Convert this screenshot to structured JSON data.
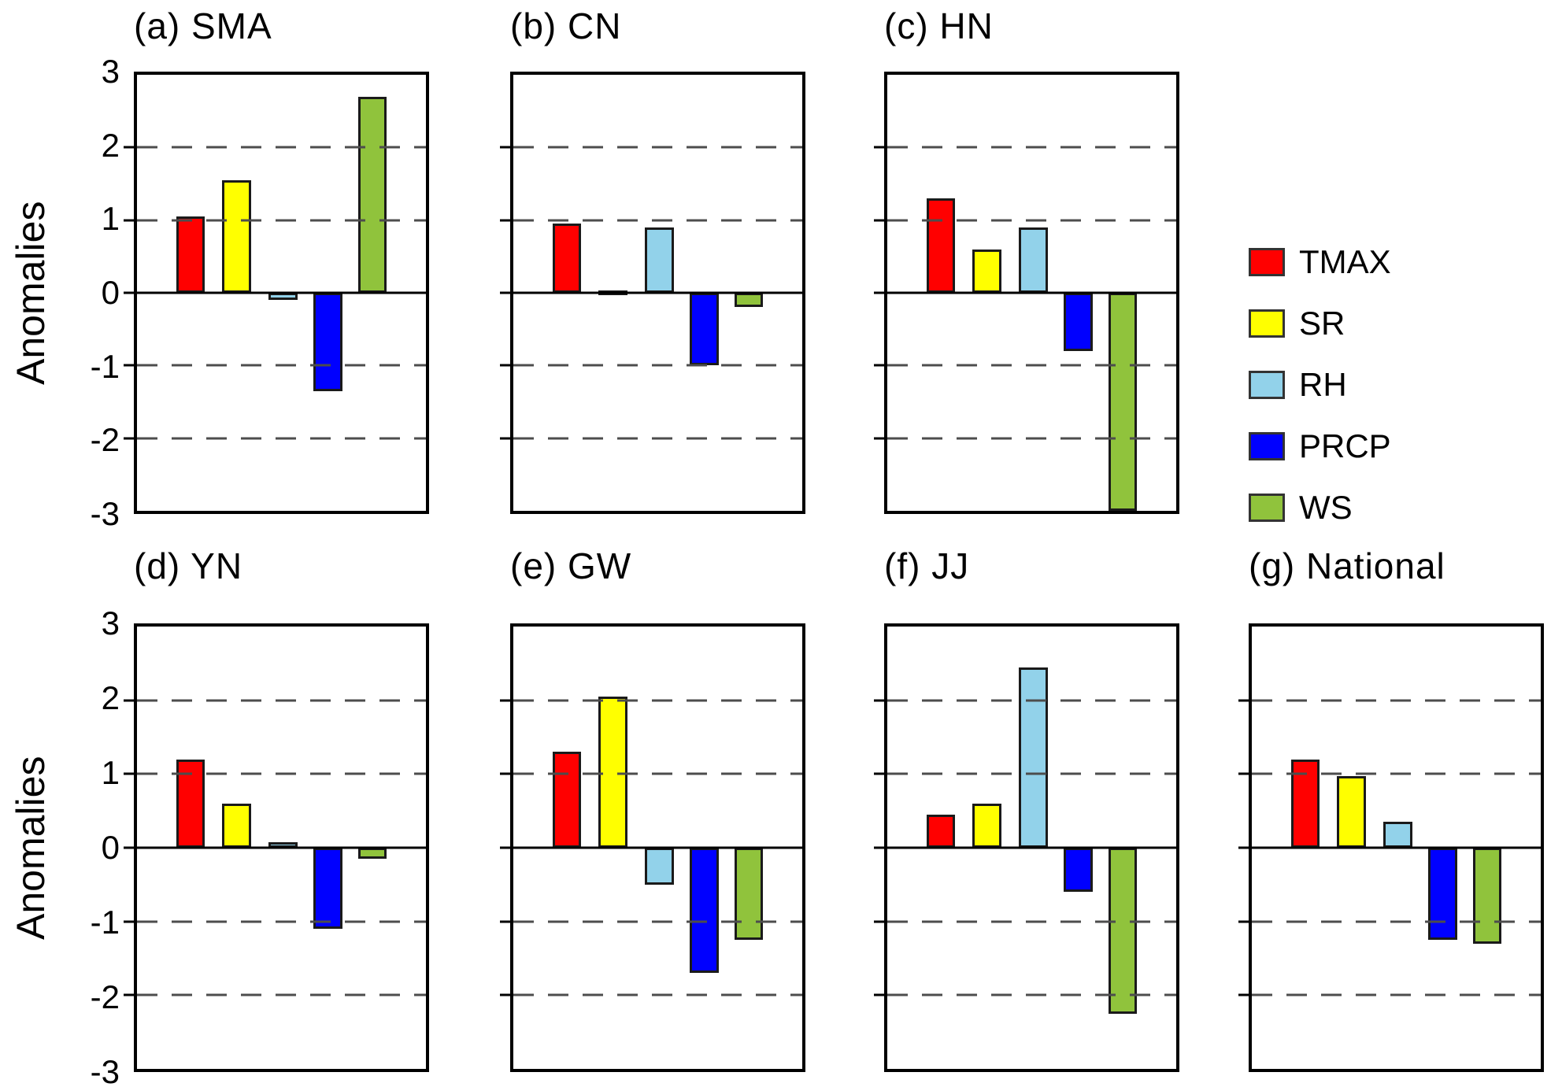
{
  "figure": {
    "ylabel": "Anomalies",
    "yticks": [
      "3",
      "2",
      "1",
      "0",
      "-1",
      "-2",
      "-3"
    ],
    "ylim": [
      -3,
      3
    ],
    "grid": "dashed horizontal lines at -2, -1, 1, 2; solid zero line"
  },
  "legend": {
    "position": "right of top row",
    "items": [
      {
        "label": "TMAX",
        "color": "#ff0000"
      },
      {
        "label": "SR",
        "color": "#ffff00"
      },
      {
        "label": "RH",
        "color": "#92d2ea"
      },
      {
        "label": "PRCP",
        "color": "#0000ff"
      },
      {
        "label": "WS",
        "color": "#90c33c"
      }
    ]
  },
  "chart_data": [
    {
      "type": "bar",
      "title": "(a) SMA",
      "region": "SMA",
      "categories": [
        "TMAX",
        "SR",
        "RH",
        "PRCP",
        "WS"
      ],
      "values": [
        1.05,
        1.55,
        -0.1,
        -1.35,
        2.7
      ],
      "ylabel": "Anomalies",
      "ylim": [
        -3,
        3
      ]
    },
    {
      "type": "bar",
      "title": "(b) CN",
      "region": "CN",
      "categories": [
        "TMAX",
        "SR",
        "RH",
        "PRCP",
        "WS"
      ],
      "values": [
        0.95,
        0.03,
        0.9,
        -1.0,
        -0.2
      ],
      "ylim": [
        -3,
        3
      ]
    },
    {
      "type": "bar",
      "title": "(c) HN",
      "region": "HN",
      "categories": [
        "TMAX",
        "SR",
        "RH",
        "PRCP",
        "WS"
      ],
      "values": [
        1.3,
        0.6,
        0.9,
        -0.8,
        -3.0
      ],
      "note": "WS bar clipped at axis bottom (-3)",
      "ylim": [
        -3,
        3
      ]
    },
    {
      "type": "bar",
      "title": "(d) YN",
      "region": "YN",
      "categories": [
        "TMAX",
        "SR",
        "RH",
        "PRCP",
        "WS"
      ],
      "values": [
        1.2,
        0.6,
        0.07,
        -1.1,
        -0.15
      ],
      "ylabel": "Anomalies",
      "ylim": [
        -3,
        3
      ]
    },
    {
      "type": "bar",
      "title": "(e) GW",
      "region": "GW",
      "categories": [
        "TMAX",
        "SR",
        "RH",
        "PRCP",
        "WS"
      ],
      "values": [
        1.3,
        2.05,
        -0.5,
        -1.7,
        -1.25
      ],
      "ylim": [
        -3,
        3
      ]
    },
    {
      "type": "bar",
      "title": "(f) JJ",
      "region": "JJ",
      "categories": [
        "TMAX",
        "SR",
        "RH",
        "PRCP",
        "WS"
      ],
      "values": [
        0.45,
        0.6,
        2.45,
        -0.6,
        -2.25
      ],
      "ylim": [
        -3,
        3
      ]
    },
    {
      "type": "bar",
      "title": "(g) National",
      "region": "National",
      "categories": [
        "TMAX",
        "SR",
        "RH",
        "PRCP",
        "WS"
      ],
      "values": [
        1.2,
        0.97,
        0.35,
        -1.25,
        -1.3
      ],
      "ylim": [
        -3,
        3
      ]
    }
  ]
}
